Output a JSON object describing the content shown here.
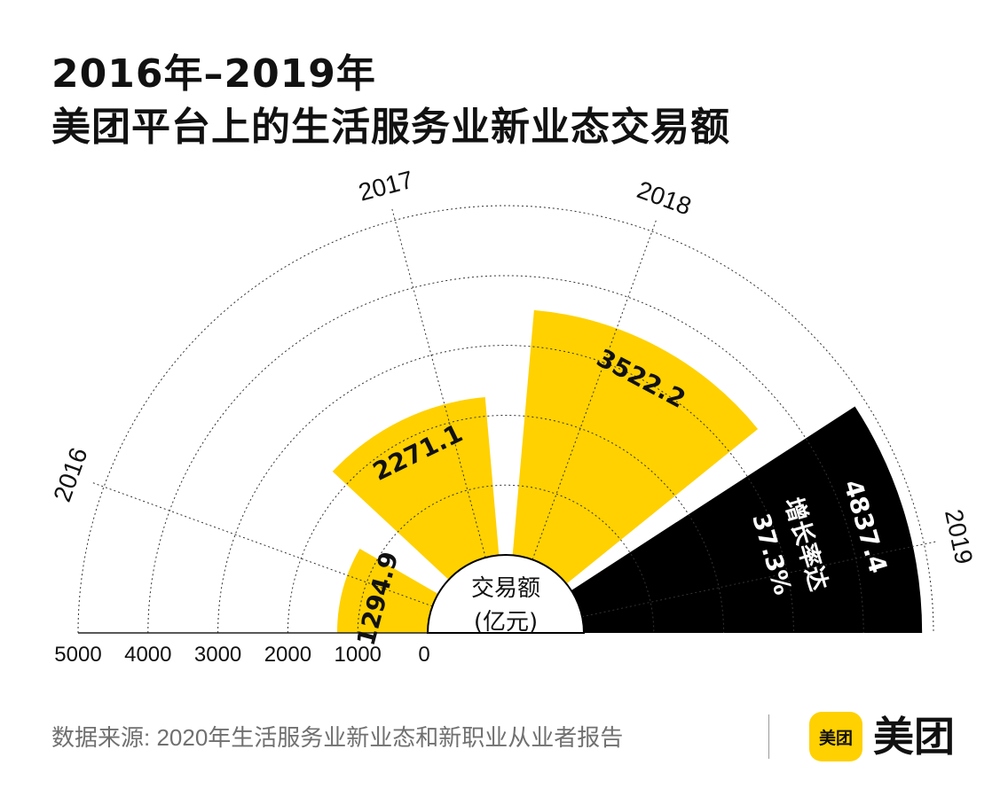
{
  "title": {
    "line1": "2016年–2019年",
    "line2": "美团平台上的生活服务业新业态交易额"
  },
  "chart_data": {
    "type": "radial-bar",
    "categories": [
      "2016",
      "2017",
      "2018",
      "2019"
    ],
    "values": [
      1294.9,
      2271.1,
      3522.2,
      4837.4
    ],
    "value_labels": [
      "1294.9",
      "2271.1",
      "3522.2",
      "4837.4"
    ],
    "radial_axis": {
      "range": [
        0,
        5000
      ],
      "ticks": [
        0,
        1000,
        2000,
        3000,
        4000,
        5000
      ],
      "tick_labels": [
        "0",
        "1000",
        "2000",
        "3000",
        "4000",
        "5000"
      ]
    },
    "center_label": [
      "交易额",
      "(亿元)"
    ],
    "annotation": [
      "增长率达",
      "37.3%"
    ],
    "colors": {
      "highlight": "#FFD100",
      "emphasis": "#000000",
      "grid": "#333333"
    },
    "grid": true
  },
  "footer": {
    "source": "数据来源: 2020年生活服务业新业态和新职业从业者报告",
    "logo_badge": "美团",
    "logo_text": "美团"
  }
}
